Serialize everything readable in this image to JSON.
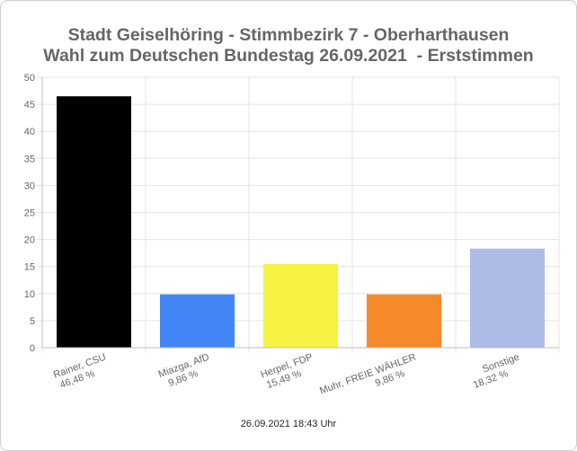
{
  "chart_data": {
    "type": "bar",
    "title": "Stadt Geiselhöring - Stimmbezirk 7 - Oberharthausen",
    "subtitle": "Wahl zum Deutschen Bundestag 26.09.2021  - Erststimmen",
    "categories": [
      {
        "name": "Rainer, CSU",
        "value_label": "46,48 %"
      },
      {
        "name": "Miazga, AfD",
        "value_label": "9,86 %"
      },
      {
        "name": "Herpel, FDP",
        "value_label": "15,49 %"
      },
      {
        "name": "Muhr, FREIE WÄHLER",
        "value_label": "9,86 %"
      },
      {
        "name": "Sonstige",
        "value_label": "18,32 %"
      }
    ],
    "values": [
      46.48,
      9.86,
      15.49,
      9.86,
      18.32
    ],
    "colors": [
      "#000000",
      "#4287f5",
      "#f5f242",
      "#f58a2a",
      "#aebbe6"
    ],
    "ylim": [
      0,
      50
    ],
    "yticks": [
      0,
      5,
      10,
      15,
      20,
      25,
      30,
      35,
      40,
      45,
      50
    ],
    "grid": true,
    "legend": "none"
  },
  "footer": "26.09.2021 18:43 Uhr"
}
